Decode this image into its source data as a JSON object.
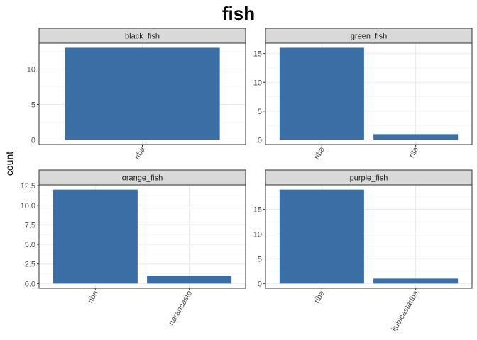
{
  "chart_data": {
    "type": "bar",
    "title": "fish",
    "ylabel": "count",
    "xlabel": "",
    "bar_color": "#3A6EA5",
    "grid": true,
    "facets": [
      {
        "name": "black_fish",
        "categories": [
          "riba"
        ],
        "values": [
          13
        ],
        "ylim": [
          -0.65,
          13.65
        ],
        "yticks": [
          0,
          5,
          10
        ],
        "ytick_labels": [
          "0",
          "5",
          "10"
        ]
      },
      {
        "name": "green_fish",
        "categories": [
          "riba",
          "rita"
        ],
        "values": [
          16,
          1
        ],
        "ylim": [
          -0.8,
          16.8
        ],
        "yticks": [
          0,
          5,
          10,
          15
        ],
        "ytick_labels": [
          "0",
          "5",
          "10",
          "15"
        ]
      },
      {
        "name": "orange_fish",
        "categories": [
          "riba",
          "narancasto"
        ],
        "values": [
          12,
          1
        ],
        "ylim": [
          -0.6,
          12.6
        ],
        "yticks": [
          0,
          2.5,
          5,
          7.5,
          10,
          12.5
        ],
        "ytick_labels": [
          "0.0",
          "2.5",
          "5.0",
          "7.5",
          "10.0",
          "12.5"
        ]
      },
      {
        "name": "purple_fish",
        "categories": [
          "riba",
          "ljubicastariba"
        ],
        "values": [
          19,
          1
        ],
        "ylim": [
          -0.95,
          19.95
        ],
        "yticks": [
          0,
          5,
          10,
          15
        ],
        "ytick_labels": [
          "0",
          "5",
          "10",
          "15"
        ]
      }
    ]
  }
}
